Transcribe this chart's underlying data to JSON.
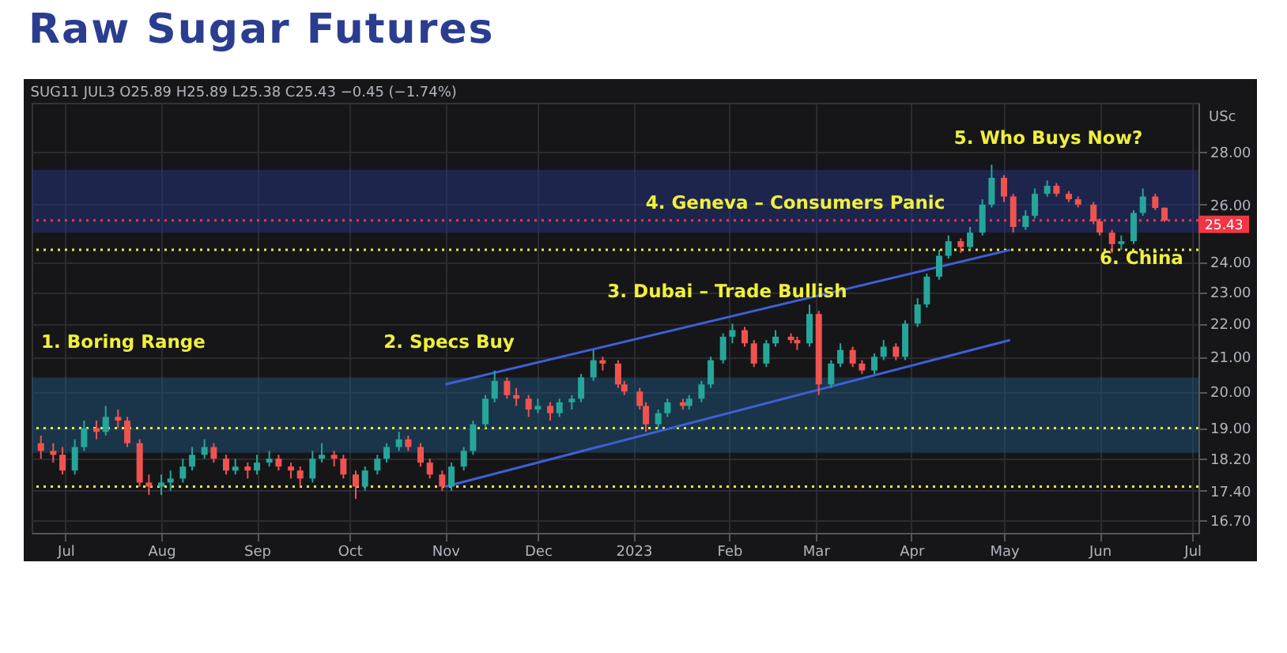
{
  "chart_data": {
    "type": "candlestick",
    "title": "Raw Sugar Futures",
    "subtitle": "SUG11 JUL3 O25.89 H25.89 L25.38 C25.43 −0.45 (−1.74%)",
    "ylabel": "USc",
    "x": [
      "2022-06-23",
      "2022-06-27",
      "2022-06-30",
      "2022-07-04",
      "2022-07-07",
      "2022-07-11",
      "2022-07-14",
      "2022-07-18",
      "2022-07-21",
      "2022-07-25",
      "2022-07-28",
      "2022-08-01",
      "2022-08-04",
      "2022-08-08",
      "2022-08-11",
      "2022-08-15",
      "2022-08-18",
      "2022-08-22",
      "2022-08-25",
      "2022-08-29",
      "2022-09-01",
      "2022-09-05",
      "2022-09-08",
      "2022-09-12",
      "2022-09-15",
      "2022-09-19",
      "2022-09-22",
      "2022-09-26",
      "2022-09-29",
      "2022-10-03",
      "2022-10-06",
      "2022-10-10",
      "2022-10-13",
      "2022-10-17",
      "2022-10-20",
      "2022-10-24",
      "2022-10-27",
      "2022-10-31",
      "2022-11-03",
      "2022-11-07",
      "2022-11-10",
      "2022-11-14",
      "2022-11-17",
      "2022-11-21",
      "2022-11-24",
      "2022-11-28",
      "2022-12-01",
      "2022-12-05",
      "2022-12-08",
      "2022-12-12",
      "2022-12-15",
      "2022-12-19",
      "2022-12-22",
      "2022-12-27",
      "2022-12-29",
      "2023-01-03",
      "2023-01-05",
      "2023-01-09",
      "2023-01-12",
      "2023-01-17",
      "2023-01-19",
      "2023-01-23",
      "2023-01-26",
      "2023-01-30",
      "2023-02-02",
      "2023-02-06",
      "2023-02-09",
      "2023-02-13",
      "2023-02-16",
      "2023-02-21",
      "2023-02-23",
      "2023-02-27",
      "2023-03-02",
      "2023-03-06",
      "2023-03-09",
      "2023-03-13",
      "2023-03-16",
      "2023-03-20",
      "2023-03-23",
      "2023-03-27",
      "2023-03-30",
      "2023-04-03",
      "2023-04-06",
      "2023-04-10",
      "2023-04-13",
      "2023-04-17",
      "2023-04-20",
      "2023-04-24",
      "2023-04-27",
      "2023-05-01",
      "2023-05-04",
      "2023-05-08",
      "2023-05-11",
      "2023-05-15",
      "2023-05-18",
      "2023-05-22",
      "2023-05-25",
      "2023-05-30",
      "2023-06-01",
      "2023-06-05",
      "2023-06-08",
      "2023-06-12",
      "2023-06-15",
      "2023-06-19",
      "2023-06-22"
    ],
    "ohlc": [
      [
        18.6,
        18.8,
        18.2,
        18.4
      ],
      [
        18.4,
        18.6,
        18.1,
        18.3
      ],
      [
        18.3,
        18.5,
        17.8,
        17.9
      ],
      [
        17.9,
        18.7,
        17.8,
        18.5
      ],
      [
        18.5,
        19.2,
        18.4,
        19.0
      ],
      [
        19.0,
        19.2,
        18.7,
        18.9
      ],
      [
        18.9,
        19.6,
        18.8,
        19.3
      ],
      [
        19.3,
        19.5,
        19.0,
        19.2
      ],
      [
        19.2,
        19.3,
        18.5,
        18.6
      ],
      [
        18.6,
        18.7,
        17.5,
        17.6
      ],
      [
        17.6,
        17.8,
        17.3,
        17.5
      ],
      [
        17.5,
        17.8,
        17.3,
        17.6
      ],
      [
        17.6,
        17.9,
        17.4,
        17.7
      ],
      [
        17.7,
        18.2,
        17.6,
        18.0
      ],
      [
        18.0,
        18.5,
        17.9,
        18.3
      ],
      [
        18.3,
        18.7,
        18.2,
        18.5
      ],
      [
        18.5,
        18.6,
        18.1,
        18.2
      ],
      [
        18.2,
        18.3,
        17.8,
        17.9
      ],
      [
        17.9,
        18.2,
        17.8,
        18.0
      ],
      [
        18.0,
        18.1,
        17.7,
        17.9
      ],
      [
        17.9,
        18.3,
        17.8,
        18.1
      ],
      [
        18.1,
        18.4,
        18.0,
        18.2
      ],
      [
        18.2,
        18.3,
        17.9,
        18.0
      ],
      [
        18.0,
        18.1,
        17.7,
        17.9
      ],
      [
        17.9,
        18.0,
        17.5,
        17.7
      ],
      [
        17.7,
        18.4,
        17.6,
        18.2
      ],
      [
        18.2,
        18.6,
        18.1,
        18.3
      ],
      [
        18.3,
        18.4,
        18.0,
        18.2
      ],
      [
        18.2,
        18.3,
        17.7,
        17.8
      ],
      [
        17.8,
        17.9,
        17.2,
        17.5
      ],
      [
        17.5,
        18.0,
        17.4,
        17.9
      ],
      [
        17.9,
        18.3,
        17.8,
        18.2
      ],
      [
        18.2,
        18.6,
        18.1,
        18.5
      ],
      [
        18.5,
        18.9,
        18.4,
        18.7
      ],
      [
        18.7,
        18.8,
        18.4,
        18.5
      ],
      [
        18.5,
        18.6,
        18.0,
        18.1
      ],
      [
        18.1,
        18.2,
        17.7,
        17.8
      ],
      [
        17.8,
        17.9,
        17.4,
        17.5
      ],
      [
        17.5,
        18.1,
        17.4,
        18.0
      ],
      [
        18.0,
        18.5,
        17.9,
        18.4
      ],
      [
        18.4,
        19.2,
        18.3,
        19.1
      ],
      [
        19.1,
        19.9,
        19.0,
        19.8
      ],
      [
        19.8,
        20.6,
        19.7,
        20.3
      ],
      [
        20.3,
        20.4,
        19.8,
        19.9
      ],
      [
        19.9,
        20.1,
        19.6,
        19.8
      ],
      [
        19.8,
        19.9,
        19.3,
        19.5
      ],
      [
        19.5,
        19.8,
        19.4,
        19.6
      ],
      [
        19.6,
        19.7,
        19.2,
        19.4
      ],
      [
        19.4,
        19.8,
        19.3,
        19.7
      ],
      [
        19.7,
        19.9,
        19.5,
        19.8
      ],
      [
        19.8,
        20.5,
        19.7,
        20.4
      ],
      [
        20.4,
        21.2,
        20.3,
        20.9
      ],
      [
        20.9,
        21.0,
        20.6,
        20.8
      ],
      [
        20.8,
        20.9,
        20.1,
        20.2
      ],
      [
        20.2,
        20.3,
        19.9,
        20.0
      ],
      [
        20.0,
        20.1,
        19.5,
        19.6
      ],
      [
        19.6,
        19.7,
        18.9,
        19.1
      ],
      [
        19.1,
        19.5,
        19.0,
        19.4
      ],
      [
        19.4,
        19.8,
        19.3,
        19.7
      ],
      [
        19.7,
        19.8,
        19.5,
        19.6
      ],
      [
        19.6,
        19.9,
        19.5,
        19.8
      ],
      [
        19.8,
        20.3,
        19.7,
        20.2
      ],
      [
        20.2,
        21.0,
        20.1,
        20.9
      ],
      [
        20.9,
        21.7,
        20.8,
        21.6
      ],
      [
        21.6,
        22.0,
        21.4,
        21.8
      ],
      [
        21.8,
        21.9,
        21.3,
        21.4
      ],
      [
        21.4,
        21.5,
        20.7,
        20.8
      ],
      [
        20.8,
        21.5,
        20.7,
        21.4
      ],
      [
        21.4,
        21.8,
        21.3,
        21.6
      ],
      [
        21.6,
        21.7,
        21.4,
        21.5
      ],
      [
        21.5,
        21.6,
        21.2,
        21.4
      ],
      [
        21.4,
        22.6,
        21.3,
        22.3
      ],
      [
        22.3,
        22.4,
        19.9,
        20.2
      ],
      [
        20.2,
        20.9,
        20.1,
        20.8
      ],
      [
        20.8,
        21.4,
        20.7,
        21.2
      ],
      [
        21.2,
        21.3,
        20.7,
        20.8
      ],
      [
        20.8,
        20.9,
        20.5,
        20.6
      ],
      [
        20.6,
        21.1,
        20.5,
        21.0
      ],
      [
        21.0,
        21.5,
        20.9,
        21.3
      ],
      [
        21.3,
        21.4,
        20.9,
        21.0
      ],
      [
        21.0,
        22.1,
        20.9,
        22.0
      ],
      [
        22.0,
        22.8,
        21.9,
        22.6
      ],
      [
        22.6,
        23.6,
        22.5,
        23.5
      ],
      [
        23.5,
        24.4,
        23.4,
        24.2
      ],
      [
        24.2,
        24.9,
        24.1,
        24.7
      ],
      [
        24.7,
        24.8,
        24.3,
        24.5
      ],
      [
        24.5,
        25.2,
        24.4,
        25.0
      ],
      [
        25.0,
        26.2,
        24.9,
        26.0
      ],
      [
        26.0,
        27.5,
        25.9,
        27.0
      ],
      [
        27.0,
        27.1,
        26.1,
        26.3
      ],
      [
        26.3,
        26.4,
        25.0,
        25.2
      ],
      [
        25.2,
        25.8,
        25.1,
        25.6
      ],
      [
        25.6,
        26.6,
        25.5,
        26.4
      ],
      [
        26.4,
        26.9,
        26.3,
        26.7
      ],
      [
        26.7,
        26.8,
        26.3,
        26.4
      ],
      [
        26.4,
        26.5,
        26.1,
        26.2
      ],
      [
        26.2,
        26.3,
        25.9,
        26.0
      ],
      [
        26.0,
        26.1,
        25.3,
        25.4
      ],
      [
        25.4,
        25.5,
        24.9,
        25.0
      ],
      [
        25.0,
        25.1,
        24.3,
        24.6
      ],
      [
        24.6,
        24.9,
        24.4,
        24.7
      ],
      [
        24.7,
        25.8,
        24.6,
        25.7
      ],
      [
        25.7,
        26.6,
        25.6,
        26.3
      ],
      [
        26.3,
        26.4,
        25.8,
        25.88
      ],
      [
        25.89,
        25.89,
        25.38,
        25.43
      ]
    ],
    "colors": [
      "#ef5350",
      "#ef5350",
      "#ef5350",
      "#26a69a",
      "#26a69a",
      "#ef5350",
      "#26a69a",
      "#ef5350",
      "#ef5350",
      "#ef5350",
      "#ef5350",
      "#26a69a",
      "#26a69a",
      "#26a69a",
      "#26a69a",
      "#26a69a",
      "#ef5350",
      "#ef5350",
      "#26a69a",
      "#ef5350",
      "#26a69a",
      "#26a69a",
      "#ef5350",
      "#ef5350",
      "#ef5350",
      "#26a69a",
      "#26a69a",
      "#ef5350",
      "#ef5350",
      "#ef5350",
      "#26a69a",
      "#26a69a",
      "#26a69a",
      "#26a69a",
      "#ef5350",
      "#ef5350",
      "#ef5350",
      "#ef5350",
      "#26a69a",
      "#26a69a",
      "#26a69a",
      "#26a69a",
      "#26a69a",
      "#ef5350",
      "#ef5350",
      "#ef5350",
      "#26a69a",
      "#ef5350",
      "#26a69a",
      "#26a69a",
      "#26a69a",
      "#26a69a",
      "#ef5350",
      "#ef5350",
      "#ef5350",
      "#ef5350",
      "#ef5350",
      "#26a69a",
      "#26a69a",
      "#ef5350",
      "#26a69a",
      "#26a69a",
      "#26a69a",
      "#26a69a",
      "#26a69a",
      "#ef5350",
      "#ef5350",
      "#26a69a",
      "#26a69a",
      "#ef5350",
      "#ef5350",
      "#26a69a",
      "#ef5350",
      "#26a69a",
      "#26a69a",
      "#ef5350",
      "#ef5350",
      "#26a69a",
      "#26a69a",
      "#ef5350",
      "#26a69a",
      "#26a69a",
      "#26a69a",
      "#26a69a",
      "#26a69a",
      "#ef5350",
      "#26a69a",
      "#26a69a",
      "#26a69a",
      "#ef5350",
      "#ef5350",
      "#26a69a",
      "#26a69a",
      "#26a69a",
      "#ef5350",
      "#ef5350",
      "#ef5350",
      "#ef5350",
      "#ef5350",
      "#ef5350",
      "#26a69a",
      "#26a69a",
      "#26a69a",
      "#ef5350",
      "#ef5350"
    ],
    "series": [
      {
        "type": "line",
        "color": "#3f5fd6",
        "x": [
          "2022-11-01",
          "2023-05-03"
        ],
        "values": [
          20.2,
          24.4
        ]
      },
      {
        "type": "line",
        "color": "#3f5fd6",
        "x": [
          "2022-11-01",
          "2023-05-03"
        ],
        "values": [
          17.5,
          21.5
        ]
      }
    ],
    "bands": [
      {
        "axis": "y",
        "from": 18.35,
        "to": 20.4,
        "color": "#1f5a86"
      },
      {
        "axis": "y",
        "from": 25.0,
        "to": 27.3,
        "color": "#26388f"
      }
    ],
    "ref_lines": [
      {
        "axis": "y",
        "value": 17.5,
        "color": "#e8e84a",
        "line_style": "dotted"
      },
      {
        "axis": "y",
        "value": 19.0,
        "color": "#e8e84a",
        "line_style": "dotted"
      },
      {
        "axis": "y",
        "value": 24.4,
        "color": "#e8e84a",
        "line_style": "dotted"
      },
      {
        "axis": "y",
        "value": 25.43,
        "label": "25.43",
        "color": "#f23645",
        "line_style": "dotted"
      }
    ],
    "annotations": [
      "1. Boring Range",
      "2. Specs Buy",
      "3. Dubai – Trade Bullish",
      "4. Geneva – Consumers Panic",
      "5. Who Buys Now?",
      "6. China"
    ],
    "xlim": [
      "2022-06-20",
      "2023-07-03"
    ],
    "xticks": [
      {
        "value": "2022-07-01",
        "label": "Jul"
      },
      {
        "value": "2022-08-01",
        "label": "Aug"
      },
      {
        "value": "2022-09-01",
        "label": "Sep"
      },
      {
        "value": "2022-10-01",
        "label": "Oct"
      },
      {
        "value": "2022-11-01",
        "label": "Nov"
      },
      {
        "value": "2022-12-01",
        "label": "Dec"
      },
      {
        "value": "2023-01-01",
        "label": "2023"
      },
      {
        "value": "2023-02-01",
        "label": "Feb"
      },
      {
        "value": "2023-03-01",
        "label": "Mar"
      },
      {
        "value": "2023-04-01",
        "label": "Apr"
      },
      {
        "value": "2023-05-01",
        "label": "May"
      },
      {
        "value": "2023-06-01",
        "label": "Jun"
      },
      {
        "value": "2023-07-01",
        "label": "Jul"
      }
    ],
    "ylim": [
      16.4,
      30.0
    ],
    "log": true,
    "yticks": [
      {
        "value": 16.7,
        "label": "16.70"
      },
      {
        "value": 17.4,
        "label": "17.40"
      },
      {
        "value": 18.2,
        "label": "18.20"
      },
      {
        "value": 19,
        "label": "19.00"
      },
      {
        "value": 20,
        "label": "20.00"
      },
      {
        "value": 21,
        "label": "21.00"
      },
      {
        "value": 22,
        "label": "22.00"
      },
      {
        "value": 23,
        "label": "23.00"
      },
      {
        "value": 24,
        "label": "24.00"
      },
      {
        "value": 26,
        "label": "26.00"
      },
      {
        "value": 28,
        "label": "28.00"
      }
    ],
    "grid": true
  }
}
